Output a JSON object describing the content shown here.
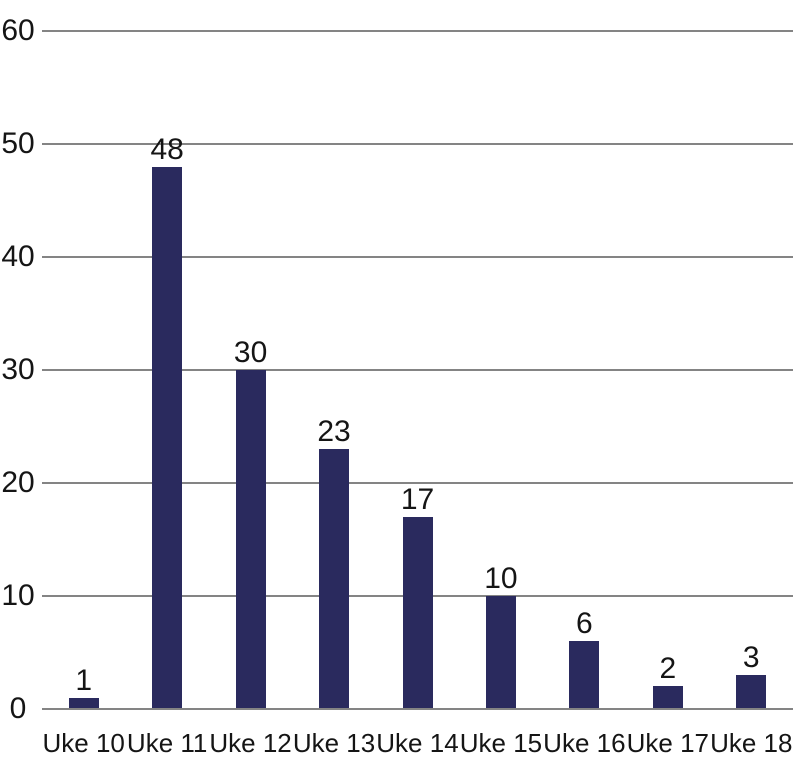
{
  "chart_data": {
    "type": "bar",
    "title": "",
    "xlabel": "",
    "ylabel": "",
    "categories": [
      "Uke 10",
      "Uke 11",
      "Uke 12",
      "Uke 13",
      "Uke 14",
      "Uke 15",
      "Uke 16",
      "Uke 17",
      "Uke 18"
    ],
    "values": [
      1,
      48,
      30,
      23,
      17,
      10,
      6,
      2,
      3
    ],
    "ylim": [
      0,
      60
    ],
    "yticks": [
      0,
      10,
      20,
      30,
      40,
      50,
      60
    ],
    "grid": true,
    "legend": false,
    "data_labels": true,
    "colors": {
      "bar": "#2A2A5E",
      "gridline": "#848484",
      "axis_line": "#848484",
      "text": "#151515",
      "background": "#FFFFFF"
    }
  }
}
